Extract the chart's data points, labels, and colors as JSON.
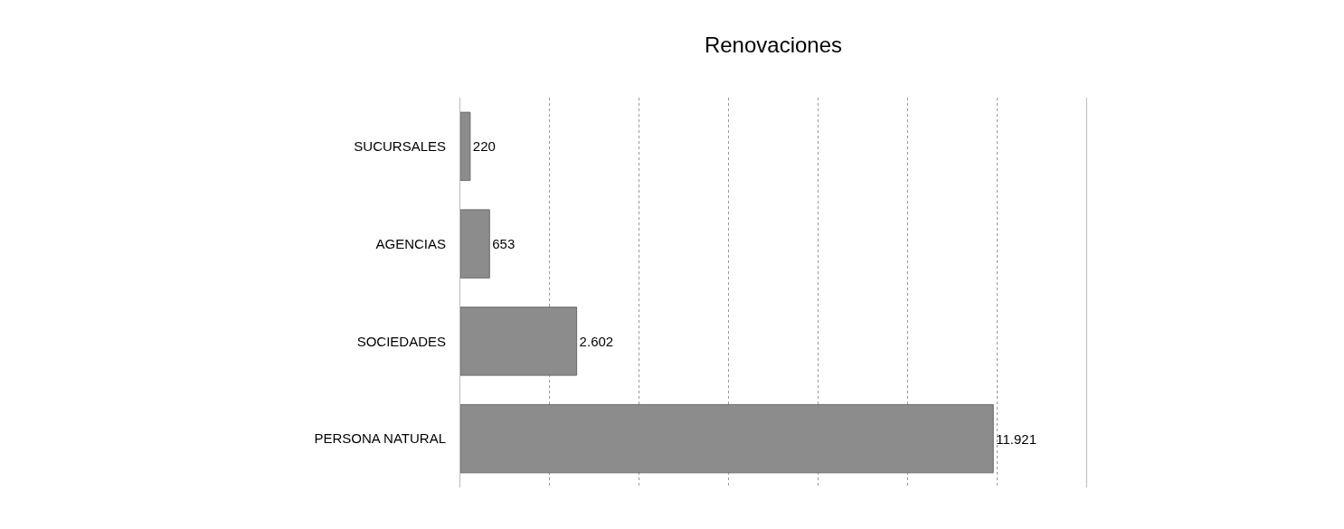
{
  "chart_data": {
    "type": "bar",
    "title": "Renovaciones",
    "orientation": "horizontal",
    "categories": [
      "SUCURSALES",
      "AGENCIAS",
      "SOCIEDADES",
      "PERSONA NATURAL"
    ],
    "values": [
      220,
      653,
      2602,
      11921
    ],
    "value_labels": [
      "220",
      "653",
      "2.602",
      "11.921"
    ],
    "color": "#8c8c8c",
    "xlim": [
      0,
      14000
    ],
    "xticks": [
      {
        "value": 0,
        "label": null
      },
      {
        "value": 2000,
        "label": null
      },
      {
        "value": 4000,
        "label": null
      },
      {
        "value": 6000,
        "label": null
      },
      {
        "value": 8000,
        "label": null
      },
      {
        "value": 10000,
        "label": null
      },
      {
        "value": 12000,
        "label": null
      },
      {
        "value": 14000,
        "label": null
      }
    ],
    "grid": "x",
    "legend": false
  }
}
